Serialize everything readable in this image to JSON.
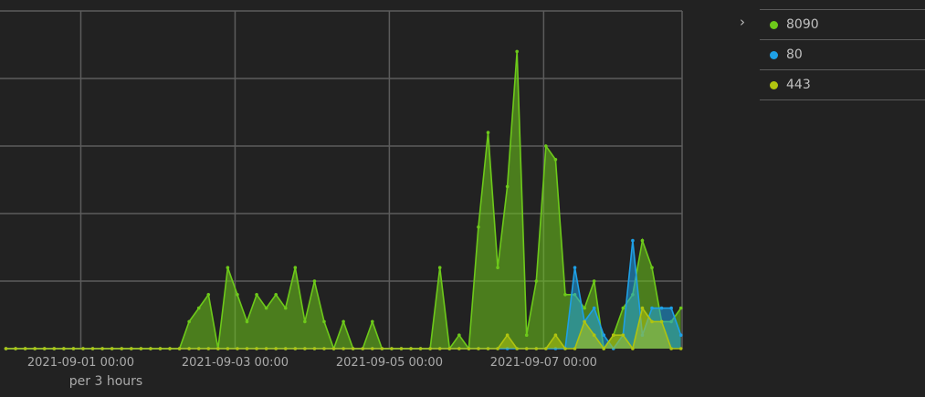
{
  "legend": {
    "toggle_icon": "chevron-right-icon",
    "items": [
      {
        "label": "8090",
        "color": "#6dc91a"
      },
      {
        "label": "80",
        "color": "#1ea0e6"
      },
      {
        "label": "443",
        "color": "#b0c40f"
      }
    ]
  },
  "chart_data": {
    "type": "area",
    "xlabel": "per 3 hours",
    "ylabel": "",
    "x_tick_labels": [
      "2021-09-01 00:00",
      "2021-09-03 00:00",
      "2021-09-05 00:00",
      "2021-09-07 00:00"
    ],
    "x_ticks": [
      "2021-09-01 00:00",
      "2021-09-03 00:00",
      "2021-09-05 00:00",
      "2021-09-07 00:00"
    ],
    "y_tick_labels_shown": false,
    "ylim": [
      0,
      25
    ],
    "y_grid_step": 5,
    "grid": true,
    "legend_position": "right",
    "x": [
      "2021-08-31 00:00",
      "2021-08-31 03:00",
      "2021-08-31 06:00",
      "2021-08-31 09:00",
      "2021-08-31 12:00",
      "2021-08-31 15:00",
      "2021-08-31 18:00",
      "2021-08-31 21:00",
      "2021-09-01 00:00",
      "2021-09-01 03:00",
      "2021-09-01 06:00",
      "2021-09-01 09:00",
      "2021-09-01 12:00",
      "2021-09-01 15:00",
      "2021-09-01 18:00",
      "2021-09-01 21:00",
      "2021-09-02 00:00",
      "2021-09-02 03:00",
      "2021-09-02 06:00",
      "2021-09-02 09:00",
      "2021-09-02 12:00",
      "2021-09-02 15:00",
      "2021-09-02 18:00",
      "2021-09-02 21:00",
      "2021-09-03 00:00",
      "2021-09-03 03:00",
      "2021-09-03 06:00",
      "2021-09-03 09:00",
      "2021-09-03 12:00",
      "2021-09-03 15:00",
      "2021-09-03 18:00",
      "2021-09-03 21:00",
      "2021-09-04 00:00",
      "2021-09-04 03:00",
      "2021-09-04 06:00",
      "2021-09-04 09:00",
      "2021-09-04 12:00",
      "2021-09-04 15:00",
      "2021-09-04 18:00",
      "2021-09-04 21:00",
      "2021-09-05 00:00",
      "2021-09-05 03:00",
      "2021-09-05 06:00",
      "2021-09-05 09:00",
      "2021-09-05 12:00",
      "2021-09-05 15:00",
      "2021-09-05 18:00",
      "2021-09-05 21:00",
      "2021-09-06 00:00",
      "2021-09-06 03:00",
      "2021-09-06 06:00",
      "2021-09-06 09:00",
      "2021-09-06 12:00",
      "2021-09-06 15:00",
      "2021-09-06 18:00",
      "2021-09-06 21:00",
      "2021-09-07 00:00",
      "2021-09-07 03:00",
      "2021-09-07 06:00",
      "2021-09-07 09:00",
      "2021-09-07 12:00",
      "2021-09-07 15:00",
      "2021-09-07 18:00",
      "2021-09-07 21:00",
      "2021-09-08 00:00",
      "2021-09-08 03:00",
      "2021-09-08 06:00",
      "2021-09-08 09:00",
      "2021-09-08 12:00",
      "2021-09-08 15:00",
      "2021-09-08 18:00"
    ],
    "series": [
      {
        "name": "8090",
        "color": "#6dc91a",
        "values": [
          0,
          0,
          0,
          0,
          0,
          0,
          0,
          0,
          0,
          0,
          0,
          0,
          0,
          0,
          0,
          0,
          0,
          0,
          0,
          2,
          3,
          4,
          0,
          6,
          4,
          2,
          4,
          3,
          4,
          3,
          6,
          2,
          5,
          2,
          0,
          2,
          0,
          0,
          2,
          0,
          0,
          0,
          0,
          0,
          0,
          6,
          0,
          1,
          0,
          9,
          16,
          6,
          12,
          22,
          1,
          5,
          15,
          14,
          4,
          4,
          3,
          5,
          0,
          1,
          3,
          4,
          8,
          6,
          2,
          2,
          3
        ]
      },
      {
        "name": "80",
        "color": "#1ea0e6",
        "values": [
          0,
          0,
          0,
          0,
          0,
          0,
          0,
          0,
          0,
          0,
          0,
          0,
          0,
          0,
          0,
          0,
          0,
          0,
          0,
          0,
          0,
          0,
          0,
          0,
          0,
          0,
          0,
          0,
          0,
          0,
          0,
          0,
          0,
          0,
          0,
          0,
          0,
          0,
          0,
          0,
          0,
          0,
          0,
          0,
          0,
          0,
          0,
          0,
          0,
          0,
          0,
          0,
          0,
          0,
          0,
          0,
          0,
          0,
          0,
          6,
          2,
          3,
          1,
          0,
          1,
          8,
          1,
          3,
          3,
          3,
          1
        ]
      },
      {
        "name": "443",
        "color": "#b0c40f",
        "values": [
          0,
          0,
          0,
          0,
          0,
          0,
          0,
          0,
          0,
          0,
          0,
          0,
          0,
          0,
          0,
          0,
          0,
          0,
          0,
          0,
          0,
          0,
          0,
          0,
          0,
          0,
          0,
          0,
          0,
          0,
          0,
          0,
          0,
          0,
          0,
          0,
          0,
          0,
          0,
          0,
          0,
          0,
          0,
          0,
          0,
          0,
          0,
          0,
          0,
          0,
          0,
          0,
          1,
          0,
          0,
          0,
          0,
          1,
          0,
          0,
          2,
          1,
          0,
          1,
          1,
          0,
          3,
          2,
          2,
          0,
          0
        ]
      }
    ]
  }
}
